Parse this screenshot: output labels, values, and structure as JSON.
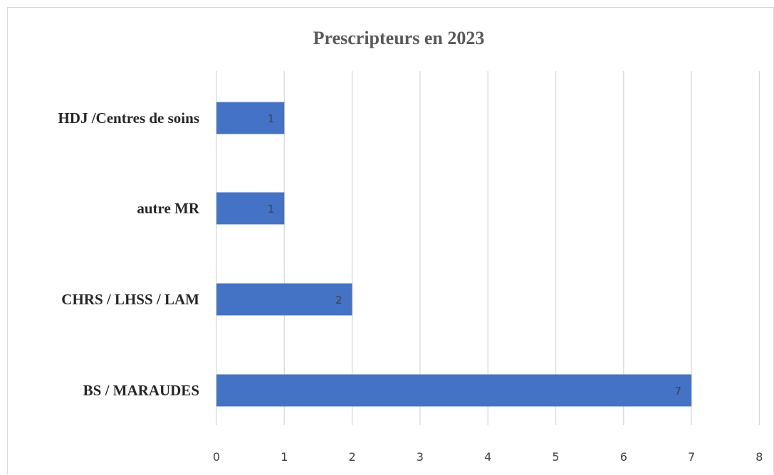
{
  "chart_data": {
    "type": "bar",
    "orientation": "horizontal",
    "title": "Prescripteurs en 2023",
    "categories": [
      "HDJ /Centres de soins",
      "autre MR",
      "CHRS / LHSS / LAM",
      "BS / MARAUDES"
    ],
    "values": [
      1,
      1,
      2,
      7
    ],
    "xlim": [
      0,
      8
    ],
    "xticks": [
      0,
      1,
      2,
      3,
      4,
      5,
      6,
      7,
      8
    ],
    "xlabel": "",
    "ylabel": "",
    "grid": "vertical",
    "data_labels": true,
    "legend": "none",
    "bar_color": "#4472C4"
  }
}
